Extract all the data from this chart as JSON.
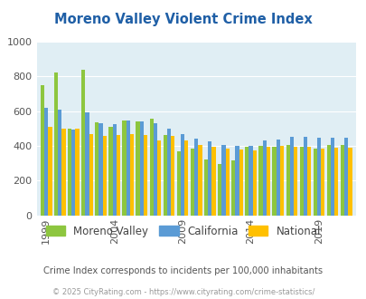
{
  "title": "Moreno Valley Violent Crime Index",
  "years": [
    1999,
    2000,
    2001,
    2002,
    2003,
    2004,
    2005,
    2006,
    2007,
    2008,
    2009,
    2010,
    2011,
    2012,
    2013,
    2014,
    2015,
    2016,
    2017,
    2018,
    2019,
    2020,
    2021
  ],
  "moreno_valley": [
    750,
    825,
    500,
    840,
    535,
    510,
    545,
    540,
    555,
    465,
    370,
    385,
    320,
    295,
    315,
    395,
    400,
    395,
    405,
    395,
    385,
    405,
    405
  ],
  "california": [
    620,
    610,
    495,
    595,
    530,
    525,
    545,
    540,
    530,
    500,
    470,
    440,
    425,
    405,
    400,
    400,
    430,
    435,
    450,
    450,
    445,
    445,
    445
  ],
  "national": [
    510,
    500,
    500,
    470,
    460,
    465,
    470,
    465,
    430,
    460,
    430,
    405,
    395,
    385,
    380,
    375,
    395,
    400,
    395,
    395,
    385,
    390,
    390
  ],
  "bar_color_mv": "#8DC63F",
  "bar_color_ca": "#5B9BD5",
  "bar_color_na": "#FFC000",
  "bg_color": "#E0EEF4",
  "title_color": "#1F5FA6",
  "ylim": [
    0,
    1000
  ],
  "yticks": [
    0,
    200,
    400,
    600,
    800,
    1000
  ],
  "xlabel_ticks": [
    1999,
    2004,
    2009,
    2014,
    2019
  ],
  "legend_labels": [
    "Moreno Valley",
    "California",
    "National"
  ],
  "subtitle": "Crime Index corresponds to incidents per 100,000 inhabitants",
  "footer": "© 2025 CityRating.com - https://www.cityrating.com/crime-statistics/",
  "subtitle_color": "#555555",
  "footer_color": "#999999"
}
